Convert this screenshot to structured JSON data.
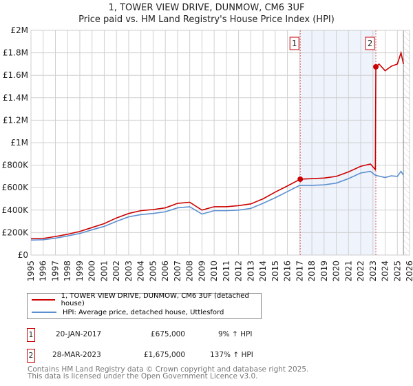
{
  "chart_data": {
    "type": "line",
    "title": "1, TOWER VIEW DRIVE, DUNMOW, CM6 3UF",
    "subtitle": "Price paid vs. HM Land Registry's House Price Index (HPI)",
    "xlim": [
      1995,
      2026
    ],
    "ylim": [
      0,
      2000000
    ],
    "yticks": [
      {
        "v": 0,
        "l": "£0"
      },
      {
        "v": 200000,
        "l": "£200K"
      },
      {
        "v": 400000,
        "l": "£400K"
      },
      {
        "v": 600000,
        "l": "£600K"
      },
      {
        "v": 800000,
        "l": "£800K"
      },
      {
        "v": 1000000,
        "l": "£1M"
      },
      {
        "v": 1200000,
        "l": "£1.2M"
      },
      {
        "v": 1400000,
        "l": "£1.4M"
      },
      {
        "v": 1600000,
        "l": "£1.6M"
      },
      {
        "v": 1800000,
        "l": "£1.8M"
      },
      {
        "v": 2000000,
        "l": "£2M"
      }
    ],
    "xticks": [
      "1995",
      "1996",
      "1997",
      "1998",
      "1999",
      "2000",
      "2001",
      "2002",
      "2003",
      "2004",
      "2005",
      "2006",
      "2007",
      "2008",
      "2009",
      "2010",
      "2011",
      "2012",
      "2013",
      "2014",
      "2015",
      "2016",
      "2017",
      "2018",
      "2019",
      "2020",
      "2021",
      "2022",
      "2023",
      "2024",
      "2025",
      "2026"
    ],
    "series": [
      {
        "name": "1, TOWER VIEW DRIVE, DUNMOW, CM6 3UF (detached house)",
        "color": "#cc0000",
        "x": [
          1995,
          1996,
          1997,
          1998,
          1999,
          2000,
          2001,
          2002,
          2003,
          2004,
          2005,
          2006,
          2007,
          2008,
          2009,
          2010,
          2011,
          2012,
          2013,
          2014,
          2015,
          2016,
          2017.05,
          2018,
          2019,
          2020,
          2021,
          2022,
          2022.8,
          2023.2,
          2023.24,
          2023.5,
          2024,
          2024.5,
          2025,
          2025.3,
          2025.5
        ],
        "y": [
          145000,
          148000,
          165000,
          185000,
          210000,
          245000,
          280000,
          330000,
          370000,
          395000,
          405000,
          420000,
          460000,
          470000,
          400000,
          430000,
          430000,
          440000,
          455000,
          500000,
          560000,
          615000,
          675000,
          680000,
          685000,
          700000,
          740000,
          790000,
          810000,
          760000,
          1675000,
          1700000,
          1640000,
          1680000,
          1700000,
          1800000,
          1700000
        ]
      },
      {
        "name": "HPI: Average price, detached house, Uttlesford",
        "color": "#5b8fd0",
        "x": [
          1995,
          1996,
          1997,
          1998,
          1999,
          2000,
          2001,
          2002,
          2003,
          2004,
          2005,
          2006,
          2007,
          2008,
          2009,
          2010,
          2011,
          2012,
          2013,
          2014,
          2015,
          2016,
          2017,
          2018,
          2019,
          2020,
          2021,
          2022,
          2022.8,
          2023.2,
          2024,
          2024.5,
          2025,
          2025.3,
          2025.5
        ],
        "y": [
          133000,
          136000,
          150000,
          170000,
          192000,
          225000,
          255000,
          300000,
          340000,
          360000,
          370000,
          385000,
          420000,
          430000,
          365000,
          395000,
          395000,
          400000,
          415000,
          460000,
          510000,
          565000,
          620000,
          620000,
          625000,
          640000,
          680000,
          730000,
          745000,
          710000,
          690000,
          705000,
          700000,
          745000,
          710000
        ]
      }
    ],
    "annotations": [
      {
        "label": "1",
        "x": 2017.05,
        "y": 675000
      },
      {
        "label": "2",
        "x": 2023.24,
        "y": 1675000
      }
    ]
  },
  "legend": {
    "items": [
      "1, TOWER VIEW DRIVE, DUNMOW, CM6 3UF (detached house)",
      "HPI: Average price, detached house, Uttlesford"
    ]
  },
  "transactions": [
    {
      "num": "1",
      "date": "20-JAN-2017",
      "price": "£675,000",
      "hpi": "9% ↑ HPI"
    },
    {
      "num": "2",
      "date": "28-MAR-2023",
      "price": "£1,675,000",
      "hpi": "137% ↑ HPI"
    }
  ],
  "footer": [
    "Contains HM Land Registry data © Crown copyright and database right 2025.",
    "This data is licensed under the Open Government Licence v3.0."
  ]
}
